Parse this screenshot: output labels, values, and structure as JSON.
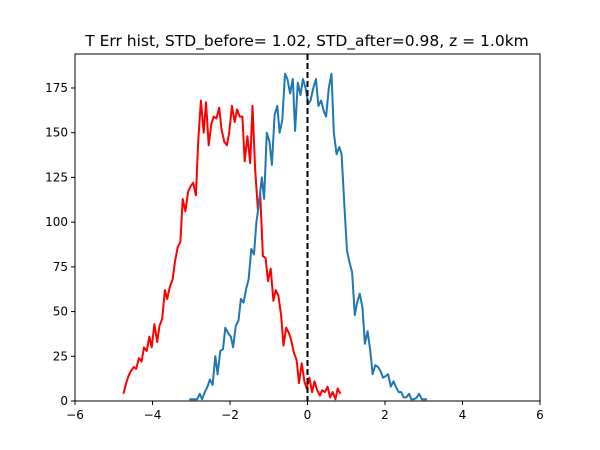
{
  "chart_data": {
    "type": "line",
    "title": "T Err hist, STD_before= 1.02, STD_after=0.98, z = 1.0km",
    "xlabel": "",
    "ylabel": "",
    "xlim": [
      -6,
      6
    ],
    "ylim": [
      0,
      194
    ],
    "xticks": [
      -6,
      -4,
      -2,
      0,
      2,
      4,
      6
    ],
    "yticks": [
      0,
      25,
      50,
      75,
      100,
      125,
      150,
      175
    ],
    "grid": false,
    "legend": "none",
    "reference_line": {
      "x": 0,
      "style": "dashed",
      "color": "#000000"
    },
    "series": [
      {
        "color": "#ff0000",
        "x": [
          -4.75,
          -4.68,
          -4.62,
          -4.55,
          -4.48,
          -4.42,
          -4.35,
          -4.28,
          -4.22,
          -4.15,
          -4.08,
          -4.02,
          -3.95,
          -3.88,
          -3.82,
          -3.75,
          -3.68,
          -3.62,
          -3.55,
          -3.48,
          -3.42,
          -3.35,
          -3.28,
          -3.22,
          -3.15,
          -3.08,
          -3.02,
          -2.95,
          -2.88,
          -2.82,
          -2.75,
          -2.68,
          -2.62,
          -2.55,
          -2.48,
          -2.42,
          -2.35,
          -2.28,
          -2.22,
          -2.15,
          -2.08,
          -2.02,
          -1.95,
          -1.88,
          -1.82,
          -1.75,
          -1.68,
          -1.62,
          -1.55,
          -1.48,
          -1.42,
          -1.35,
          -1.28,
          -1.22,
          -1.15,
          -1.08,
          -1.02,
          -0.95,
          -0.88,
          -0.82,
          -0.75,
          -0.68,
          -0.62,
          -0.55,
          -0.48,
          -0.42,
          -0.35,
          -0.28,
          -0.22,
          -0.15,
          -0.08,
          -0.02,
          0.05,
          0.12,
          0.18,
          0.25,
          0.32,
          0.38,
          0.45,
          0.52,
          0.58,
          0.65,
          0.72,
          0.78,
          0.85
        ],
        "y": [
          4,
          10,
          14,
          17,
          19,
          18,
          24,
          22,
          30,
          28,
          36,
          30,
          43,
          33,
          42,
          46,
          62,
          57,
          64,
          68,
          78,
          86,
          89,
          113,
          106,
          117,
          120,
          122,
          115,
          145,
          168,
          150,
          167,
          143,
          155,
          159,
          158,
          164,
          152,
          145,
          143,
          150,
          165,
          156,
          163,
          159,
          159,
          134,
          148,
          133,
          165,
          129,
          107,
          116,
          81,
          80,
          67,
          74,
          56,
          62,
          59,
          48,
          31,
          41,
          38,
          34,
          27,
          23,
          10,
          21,
          11,
          7,
          13,
          5,
          11,
          6,
          3,
          6,
          5,
          8,
          2,
          5,
          1,
          7,
          4
        ]
      },
      {
        "color": "#1f77b4",
        "x": [
          -3.05,
          -2.98,
          -2.92,
          -2.85,
          -2.78,
          -2.72,
          -2.65,
          -2.58,
          -2.52,
          -2.45,
          -2.38,
          -2.32,
          -2.25,
          -2.18,
          -2.12,
          -2.05,
          -1.98,
          -1.92,
          -1.85,
          -1.78,
          -1.72,
          -1.65,
          -1.58,
          -1.52,
          -1.45,
          -1.38,
          -1.32,
          -1.25,
          -1.18,
          -1.12,
          -1.05,
          -0.98,
          -0.92,
          -0.85,
          -0.78,
          -0.72,
          -0.65,
          -0.58,
          -0.52,
          -0.45,
          -0.38,
          -0.32,
          -0.25,
          -0.18,
          -0.12,
          -0.05,
          0.02,
          0.08,
          0.15,
          0.22,
          0.28,
          0.35,
          0.42,
          0.48,
          0.55,
          0.62,
          0.68,
          0.75,
          0.82,
          0.88,
          0.95,
          1.02,
          1.08,
          1.15,
          1.22,
          1.28,
          1.35,
          1.42,
          1.48,
          1.55,
          1.62,
          1.68,
          1.75,
          1.82,
          1.88,
          1.95,
          2.02,
          2.08,
          2.15,
          2.22,
          2.28,
          2.35,
          2.42,
          2.48,
          2.55,
          2.62,
          2.68,
          2.75,
          2.82,
          2.88,
          2.95,
          3.02,
          3.08
        ],
        "y": [
          1,
          1,
          1,
          1,
          4,
          1,
          5,
          8,
          12,
          9,
          25,
          15,
          28,
          29,
          41,
          38,
          36,
          30,
          42,
          45,
          57,
          55,
          63,
          68,
          85,
          82,
          100,
          111,
          125,
          113,
          150,
          145,
          132,
          160,
          165,
          150,
          157,
          183,
          180,
          172,
          180,
          151,
          178,
          171,
          180,
          175,
          166,
          168,
          175,
          180,
          165,
          168,
          162,
          159,
          175,
          183,
          150,
          138,
          142,
          138,
          110,
          84,
          78,
          72,
          48,
          55,
          60,
          52,
          32,
          39,
          28,
          15,
          20,
          19,
          17,
          13,
          14,
          15,
          8,
          11,
          8,
          5,
          5,
          2,
          2,
          4,
          1,
          1,
          2,
          4,
          1,
          1,
          1
        ]
      }
    ]
  }
}
